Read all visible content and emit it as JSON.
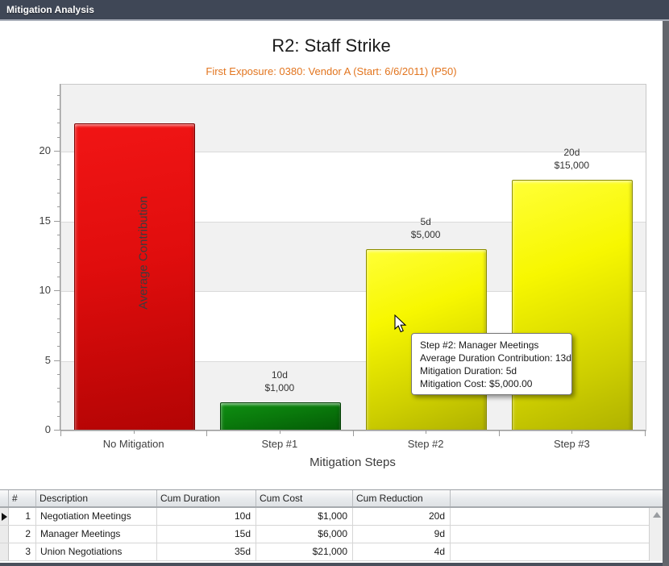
{
  "window": {
    "title": "Mitigation Analysis"
  },
  "chart_data": {
    "type": "bar",
    "title": "R2: Staff Strike",
    "subtitle": "First Exposure: 0380: Vendor A (Start: 6/6/2011) (P50)",
    "xlabel": "Mitigation Steps",
    "ylabel": "Average Contribution",
    "categories": [
      "No Mitigation",
      "Step #1",
      "Step #2",
      "Step #3"
    ],
    "values": [
      22,
      2,
      13,
      18
    ],
    "bar_colors": [
      "red",
      "green",
      "yellow",
      "yellow"
    ],
    "bar_labels": [
      "",
      "10d\n$1,000",
      "5d\n$5,000",
      "20d\n$15,000"
    ],
    "yticks": [
      0,
      5,
      10,
      15,
      20
    ],
    "ylim": [
      0,
      24.8
    ],
    "grid": "horizontal bands every 5 units, alternating gray/white",
    "legend": "none",
    "accent_colors": {
      "no_mitigation": "#d40909",
      "step_done": "#0a7a0c",
      "step_pending": "#e8e800",
      "subtitle": "#e2751f"
    }
  },
  "tooltip": {
    "lines": [
      "Step #2: Manager Meetings",
      "Average Duration Contribution: 13d",
      "Mitigation Duration: 5d",
      "Mitigation Cost: $5,000.00"
    ]
  },
  "table": {
    "columns": [
      "#",
      "Description",
      "Cum Duration",
      "Cum Cost",
      "Cum Reduction"
    ],
    "rows": [
      [
        "1",
        "Negotiation Meetings",
        "10d",
        "$1,000",
        "20d"
      ],
      [
        "2",
        "Manager Meetings",
        "15d",
        "$6,000",
        "9d"
      ],
      [
        "3",
        "Union Negotiations",
        "35d",
        "$21,000",
        "4d"
      ]
    ],
    "current_row_index": 0
  }
}
